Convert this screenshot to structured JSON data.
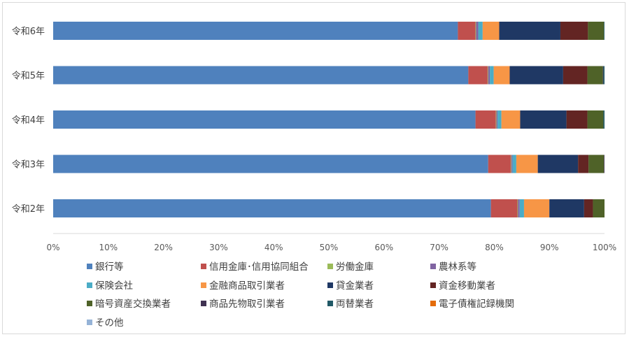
{
  "chart_data": {
    "type": "bar",
    "orientation": "horizontal",
    "stacked": "percent",
    "categories": [
      "令和6年",
      "令和5年",
      "令和4年",
      "令和3年",
      "令和2年"
    ],
    "xlim": [
      0,
      100
    ],
    "xticks": [
      "0%",
      "10%",
      "20%",
      "30%",
      "40%",
      "50%",
      "60%",
      "70%",
      "80%",
      "90%",
      "100%"
    ],
    "grid": false,
    "legend_position": "bottom",
    "series": [
      {
        "name": "銀行等",
        "color": "#4f81bd",
        "values": [
          73.4,
          75.3,
          76.6,
          78.9,
          79.4
        ]
      },
      {
        "name": "信用金庫･信用協同組合",
        "color": "#c0504d",
        "values": [
          3.2,
          3.5,
          3.7,
          4.1,
          4.8
        ]
      },
      {
        "name": "労働金庫",
        "color": "#9bbb59",
        "values": [
          0.1,
          0.1,
          0.1,
          0.1,
          0.1
        ]
      },
      {
        "name": "農林系等",
        "color": "#8064a2",
        "values": [
          0.4,
          0.3,
          0.2,
          0.2,
          0.3
        ]
      },
      {
        "name": "保険会社",
        "color": "#4bacc6",
        "values": [
          0.8,
          0.7,
          0.7,
          0.7,
          0.8
        ]
      },
      {
        "name": "金融商品取引業者",
        "color": "#f79646",
        "values": [
          3.0,
          2.9,
          3.4,
          3.9,
          4.6
        ]
      },
      {
        "name": "貸金業者",
        "color": "#1f3864",
        "values": [
          11.1,
          9.7,
          8.4,
          7.3,
          6.3
        ]
      },
      {
        "name": "資金移動業者",
        "color": "#632523",
        "values": [
          5.0,
          4.4,
          3.8,
          1.9,
          1.6
        ]
      },
      {
        "name": "暗号資産交換業者",
        "color": "#4f6228",
        "values": [
          2.9,
          2.8,
          2.9,
          2.8,
          2.1
        ]
      },
      {
        "name": "商品先物取引業者",
        "color": "#3f3151",
        "values": [
          0.0,
          0.1,
          0.0,
          0.1,
          0.0
        ]
      },
      {
        "name": "両替業者",
        "color": "#215967",
        "values": [
          0.1,
          0.2,
          0.2,
          0.0,
          0.0
        ]
      },
      {
        "name": "電子債権記録機関",
        "color": "#e46c0a",
        "values": [
          0.0,
          0.0,
          0.0,
          0.0,
          0.0
        ]
      },
      {
        "name": "その他",
        "color": "#95b3d7",
        "values": [
          0.0,
          0.0,
          0.0,
          0.0,
          0.0
        ]
      }
    ]
  }
}
